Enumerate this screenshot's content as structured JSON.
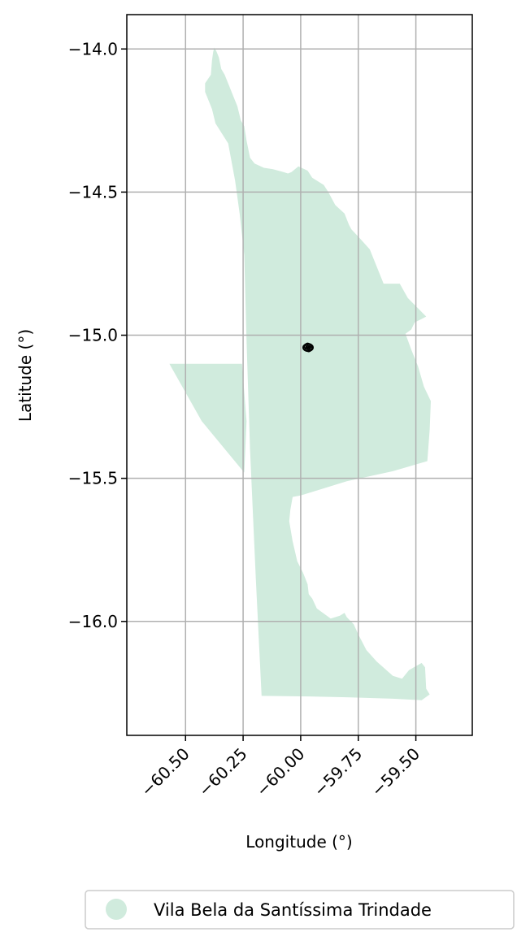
{
  "chart_data": {
    "type": "map",
    "xlabel": "Longitude (°)",
    "ylabel": "Latitude (°)",
    "xlim": [
      -60.755,
      -59.255
    ],
    "ylim": [
      -16.398,
      -13.88
    ],
    "grid": true,
    "x_ticks": [
      -60.5,
      -60.25,
      -60.0,
      -59.75,
      -59.5
    ],
    "x_tick_labels": [
      "−60.50",
      "−60.25",
      "−60.00",
      "−59.75",
      "−59.50"
    ],
    "y_ticks": [
      -14.0,
      -14.5,
      -15.0,
      -15.5,
      -16.0
    ],
    "y_tick_labels": [
      "−14.0",
      "−14.5",
      "−15.0",
      "−15.5",
      "−16.0"
    ],
    "legend": {
      "placement": "bottom-center",
      "entries": [
        {
          "label": "Vila Bela da Santíssima Trindade",
          "color": "#d0ebdd"
        }
      ]
    },
    "region": {
      "name": "Vila Bela da Santíssima Trindade",
      "fill": "#d0ebdd",
      "outline": [
        [
          -60.375,
          -13.995
        ],
        [
          -60.365,
          -14.01
        ],
        [
          -60.355,
          -14.03
        ],
        [
          -60.345,
          -14.07
        ],
        [
          -60.33,
          -14.09
        ],
        [
          -60.31,
          -14.13
        ],
        [
          -60.295,
          -14.16
        ],
        [
          -60.275,
          -14.2
        ],
        [
          -60.26,
          -14.25
        ],
        [
          -60.245,
          -14.27
        ],
        [
          -60.235,
          -14.32
        ],
        [
          -60.22,
          -14.38
        ],
        [
          -60.2,
          -14.4
        ],
        [
          -60.16,
          -14.415
        ],
        [
          -60.12,
          -14.42
        ],
        [
          -60.075,
          -14.43
        ],
        [
          -60.055,
          -14.435
        ],
        [
          -60.04,
          -14.43
        ],
        [
          -60.01,
          -14.41
        ],
        [
          -59.97,
          -14.425
        ],
        [
          -59.95,
          -14.45
        ],
        [
          -59.9,
          -14.475
        ],
        [
          -59.88,
          -14.5
        ],
        [
          -59.85,
          -14.545
        ],
        [
          -59.81,
          -14.575
        ],
        [
          -59.79,
          -14.615
        ],
        [
          -59.78,
          -14.63
        ],
        [
          -59.745,
          -14.66
        ],
        [
          -59.7,
          -14.7
        ],
        [
          -59.67,
          -14.76
        ],
        [
          -59.64,
          -14.82
        ],
        [
          -59.57,
          -14.82
        ],
        [
          -59.535,
          -14.87
        ],
        [
          -59.455,
          -14.935
        ],
        [
          -59.48,
          -14.945
        ],
        [
          -59.505,
          -14.955
        ],
        [
          -59.52,
          -14.98
        ],
        [
          -59.545,
          -14.995
        ],
        [
          -59.52,
          -15.05
        ],
        [
          -59.49,
          -15.11
        ],
        [
          -59.465,
          -15.18
        ],
        [
          -59.435,
          -15.23
        ],
        [
          -59.44,
          -15.33
        ],
        [
          -59.45,
          -15.44
        ],
        [
          -59.6,
          -15.475
        ],
        [
          -59.8,
          -15.51
        ],
        [
          -59.98,
          -15.555
        ],
        [
          -60.0,
          -15.56
        ],
        [
          -60.035,
          -15.565
        ],
        [
          -60.045,
          -15.61
        ],
        [
          -60.05,
          -15.65
        ],
        [
          -60.035,
          -15.72
        ],
        [
          -60.015,
          -15.79
        ],
        [
          -59.99,
          -15.83
        ],
        [
          -59.97,
          -15.87
        ],
        [
          -59.965,
          -15.905
        ],
        [
          -59.95,
          -15.92
        ],
        [
          -59.93,
          -15.955
        ],
        [
          -59.87,
          -15.99
        ],
        [
          -59.83,
          -15.98
        ],
        [
          -59.81,
          -15.97
        ],
        [
          -59.8,
          -15.985
        ],
        [
          -59.77,
          -16.01
        ],
        [
          -59.75,
          -16.045
        ],
        [
          -59.715,
          -16.1
        ],
        [
          -59.67,
          -16.14
        ],
        [
          -59.6,
          -16.19
        ],
        [
          -59.56,
          -16.2
        ],
        [
          -59.53,
          -16.17
        ],
        [
          -59.475,
          -16.145
        ],
        [
          -59.46,
          -16.16
        ],
        [
          -59.455,
          -16.235
        ],
        [
          -59.44,
          -16.255
        ],
        [
          -59.475,
          -16.275
        ],
        [
          -59.6,
          -16.27
        ],
        [
          -59.8,
          -16.265
        ],
        [
          -59.96,
          -16.262
        ],
        [
          -60.17,
          -16.26
        ],
        [
          -60.195,
          -15.85
        ],
        [
          -60.22,
          -15.4
        ],
        [
          -60.235,
          -15.02
        ],
        [
          -60.245,
          -14.72
        ],
        [
          -60.265,
          -14.575
        ],
        [
          -60.285,
          -14.46
        ],
        [
          -60.315,
          -14.33
        ],
        [
          -60.37,
          -14.26
        ],
        [
          -60.385,
          -14.21
        ],
        [
          -60.4,
          -14.18
        ],
        [
          -60.415,
          -14.15
        ],
        [
          -60.415,
          -14.12
        ],
        [
          -60.39,
          -14.09
        ],
        [
          -60.385,
          -14.04
        ],
        [
          -60.38,
          -14.01
        ]
      ],
      "west_extension": [
        [
          -60.255,
          -15.1
        ],
        [
          -60.57,
          -15.1
        ],
        [
          -60.43,
          -15.3
        ],
        [
          -60.245,
          -15.48
        ],
        [
          -60.235,
          -15.3
        ]
      ]
    },
    "point_cluster": {
      "color": "#000000",
      "center": [
        -59.968,
        -15.043
      ],
      "points": [
        [
          -59.975,
          -15.04
        ],
        [
          -59.97,
          -15.035
        ],
        [
          -59.963,
          -15.038
        ],
        [
          -59.96,
          -15.045
        ],
        [
          -59.965,
          -15.05
        ],
        [
          -59.972,
          -15.048
        ],
        [
          -59.968,
          -15.043
        ]
      ]
    }
  }
}
